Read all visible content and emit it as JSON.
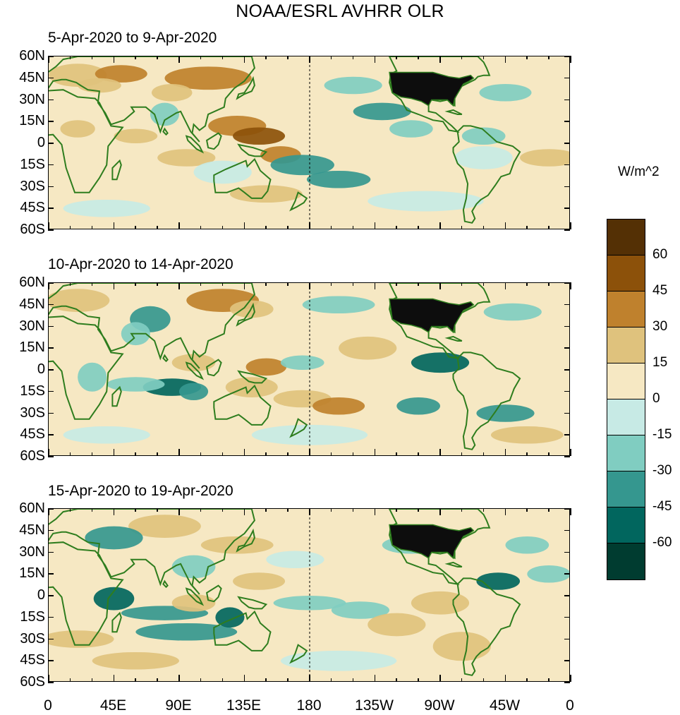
{
  "title": "NOAA/ESRL AVHRR OLR",
  "panels": [
    {
      "title": "5-Apr-2020 to 9-Apr-2020"
    },
    {
      "title": "10-Apr-2020 to 14-Apr-2020"
    },
    {
      "title": "15-Apr-2020 to 19-Apr-2020"
    }
  ],
  "y_ticks": [
    "60N",
    "45N",
    "30N",
    "15N",
    "0",
    "15S",
    "30S",
    "45S",
    "60S"
  ],
  "x_ticks": [
    "0",
    "45E",
    "90E",
    "135E",
    "180",
    "135W",
    "90W",
    "45W",
    "0"
  ],
  "colorbar": {
    "units": "W/m^2",
    "labels": [
      "60",
      "45",
      "30",
      "15",
      "0",
      "-15",
      "-30",
      "-45",
      "-60"
    ],
    "colors": [
      "#543005",
      "#8c510a",
      "#bf812d",
      "#dfc27d",
      "#f6e8c3",
      "#c7eae5",
      "#80cdc1",
      "#35978f",
      "#01665e",
      "#003c30"
    ]
  },
  "colors": {
    "land_outline": "#2e7d1e",
    "usa_fill": "#0d0d0d",
    "background": "#f6e8c3"
  }
}
